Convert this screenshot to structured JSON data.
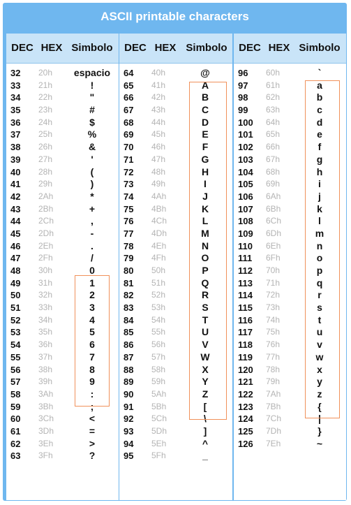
{
  "title": "ASCII printable characters",
  "headers": {
    "dec": "DEC",
    "hex": "HEX",
    "sym": "Simbolo"
  },
  "columns": [
    {
      "rows": [
        {
          "dec": "32",
          "hex": "20h",
          "sym": "espacio"
        },
        {
          "dec": "33",
          "hex": "21h",
          "sym": "!"
        },
        {
          "dec": "34",
          "hex": "22h",
          "sym": "\""
        },
        {
          "dec": "35",
          "hex": "23h",
          "sym": "#"
        },
        {
          "dec": "36",
          "hex": "24h",
          "sym": "$"
        },
        {
          "dec": "37",
          "hex": "25h",
          "sym": "%"
        },
        {
          "dec": "38",
          "hex": "26h",
          "sym": "&"
        },
        {
          "dec": "39",
          "hex": "27h",
          "sym": "'"
        },
        {
          "dec": "40",
          "hex": "28h",
          "sym": "("
        },
        {
          "dec": "41",
          "hex": "29h",
          "sym": ")"
        },
        {
          "dec": "42",
          "hex": "2Ah",
          "sym": "*"
        },
        {
          "dec": "43",
          "hex": "2Bh",
          "sym": "+"
        },
        {
          "dec": "44",
          "hex": "2Ch",
          "sym": ","
        },
        {
          "dec": "45",
          "hex": "2Dh",
          "sym": "-"
        },
        {
          "dec": "46",
          "hex": "2Eh",
          "sym": "."
        },
        {
          "dec": "47",
          "hex": "2Fh",
          "sym": "/"
        },
        {
          "dec": "48",
          "hex": "30h",
          "sym": "0"
        },
        {
          "dec": "49",
          "hex": "31h",
          "sym": "1"
        },
        {
          "dec": "50",
          "hex": "32h",
          "sym": "2"
        },
        {
          "dec": "51",
          "hex": "33h",
          "sym": "3"
        },
        {
          "dec": "52",
          "hex": "34h",
          "sym": "4"
        },
        {
          "dec": "53",
          "hex": "35h",
          "sym": "5"
        },
        {
          "dec": "54",
          "hex": "36h",
          "sym": "6"
        },
        {
          "dec": "55",
          "hex": "37h",
          "sym": "7"
        },
        {
          "dec": "56",
          "hex": "38h",
          "sym": "8"
        },
        {
          "dec": "57",
          "hex": "39h",
          "sym": "9"
        },
        {
          "dec": "58",
          "hex": "3Ah",
          "sym": ":"
        },
        {
          "dec": "59",
          "hex": "3Bh",
          "sym": ";"
        },
        {
          "dec": "60",
          "hex": "3Ch",
          "sym": "<"
        },
        {
          "dec": "61",
          "hex": "3Dh",
          "sym": "="
        },
        {
          "dec": "62",
          "hex": "3Eh",
          "sym": ">"
        },
        {
          "dec": "63",
          "hex": "3Fh",
          "sym": "?"
        }
      ]
    },
    {
      "rows": [
        {
          "dec": "64",
          "hex": "40h",
          "sym": "@"
        },
        {
          "dec": "65",
          "hex": "41h",
          "sym": "A"
        },
        {
          "dec": "66",
          "hex": "42h",
          "sym": "B"
        },
        {
          "dec": "67",
          "hex": "43h",
          "sym": "C"
        },
        {
          "dec": "68",
          "hex": "44h",
          "sym": "D"
        },
        {
          "dec": "69",
          "hex": "45h",
          "sym": "E"
        },
        {
          "dec": "70",
          "hex": "46h",
          "sym": "F"
        },
        {
          "dec": "71",
          "hex": "47h",
          "sym": "G"
        },
        {
          "dec": "72",
          "hex": "48h",
          "sym": "H"
        },
        {
          "dec": "73",
          "hex": "49h",
          "sym": "I"
        },
        {
          "dec": "74",
          "hex": "4Ah",
          "sym": "J"
        },
        {
          "dec": "75",
          "hex": "4Bh",
          "sym": "K"
        },
        {
          "dec": "76",
          "hex": "4Ch",
          "sym": "L"
        },
        {
          "dec": "77",
          "hex": "4Dh",
          "sym": "M"
        },
        {
          "dec": "78",
          "hex": "4Eh",
          "sym": "N"
        },
        {
          "dec": "79",
          "hex": "4Fh",
          "sym": "O"
        },
        {
          "dec": "80",
          "hex": "50h",
          "sym": "P"
        },
        {
          "dec": "81",
          "hex": "51h",
          "sym": "Q"
        },
        {
          "dec": "82",
          "hex": "52h",
          "sym": "R"
        },
        {
          "dec": "83",
          "hex": "53h",
          "sym": "S"
        },
        {
          "dec": "84",
          "hex": "54h",
          "sym": "T"
        },
        {
          "dec": "85",
          "hex": "55h",
          "sym": "U"
        },
        {
          "dec": "86",
          "hex": "56h",
          "sym": "V"
        },
        {
          "dec": "87",
          "hex": "57h",
          "sym": "W"
        },
        {
          "dec": "88",
          "hex": "58h",
          "sym": "X"
        },
        {
          "dec": "89",
          "hex": "59h",
          "sym": "Y"
        },
        {
          "dec": "90",
          "hex": "5Ah",
          "sym": "Z"
        },
        {
          "dec": "91",
          "hex": "5Bh",
          "sym": "["
        },
        {
          "dec": "92",
          "hex": "5Ch",
          "sym": "\\"
        },
        {
          "dec": "93",
          "hex": "5Dh",
          "sym": "]"
        },
        {
          "dec": "94",
          "hex": "5Eh",
          "sym": "^"
        },
        {
          "dec": "95",
          "hex": "5Fh",
          "sym": "_"
        }
      ]
    },
    {
      "rows": [
        {
          "dec": "96",
          "hex": "60h",
          "sym": "`"
        },
        {
          "dec": "97",
          "hex": "61h",
          "sym": "a"
        },
        {
          "dec": "98",
          "hex": "62h",
          "sym": "b"
        },
        {
          "dec": "99",
          "hex": "63h",
          "sym": "c"
        },
        {
          "dec": "100",
          "hex": "64h",
          "sym": "d"
        },
        {
          "dec": "101",
          "hex": "65h",
          "sym": "e"
        },
        {
          "dec": "102",
          "hex": "66h",
          "sym": "f"
        },
        {
          "dec": "103",
          "hex": "67h",
          "sym": "g"
        },
        {
          "dec": "104",
          "hex": "68h",
          "sym": "h"
        },
        {
          "dec": "105",
          "hex": "69h",
          "sym": "i"
        },
        {
          "dec": "106",
          "hex": "6Ah",
          "sym": "j"
        },
        {
          "dec": "107",
          "hex": "6Bh",
          "sym": "k"
        },
        {
          "dec": "108",
          "hex": "6Ch",
          "sym": "l"
        },
        {
          "dec": "109",
          "hex": "6Dh",
          "sym": "m"
        },
        {
          "dec": "110",
          "hex": "6Eh",
          "sym": "n"
        },
        {
          "dec": "111",
          "hex": "6Fh",
          "sym": "o"
        },
        {
          "dec": "112",
          "hex": "70h",
          "sym": "p"
        },
        {
          "dec": "113",
          "hex": "71h",
          "sym": "q"
        },
        {
          "dec": "114",
          "hex": "72h",
          "sym": "r"
        },
        {
          "dec": "115",
          "hex": "73h",
          "sym": "s"
        },
        {
          "dec": "116",
          "hex": "74h",
          "sym": "t"
        },
        {
          "dec": "117",
          "hex": "75h",
          "sym": "u"
        },
        {
          "dec": "118",
          "hex": "76h",
          "sym": "v"
        },
        {
          "dec": "119",
          "hex": "77h",
          "sym": "w"
        },
        {
          "dec": "120",
          "hex": "78h",
          "sym": "x"
        },
        {
          "dec": "121",
          "hex": "79h",
          "sym": "y"
        },
        {
          "dec": "122",
          "hex": "7Ah",
          "sym": "z"
        },
        {
          "dec": "123",
          "hex": "7Bh",
          "sym": "{"
        },
        {
          "dec": "124",
          "hex": "7Ch",
          "sym": "|"
        },
        {
          "dec": "125",
          "hex": "7Dh",
          "sym": "}"
        },
        {
          "dec": "126",
          "hex": "7Eh",
          "sym": "~"
        }
      ]
    }
  ],
  "colors": {
    "frame": "#6fb7ef",
    "header": "#c9e4f8",
    "highlight": "#f0915a",
    "hex_text": "#b4b4b4"
  }
}
